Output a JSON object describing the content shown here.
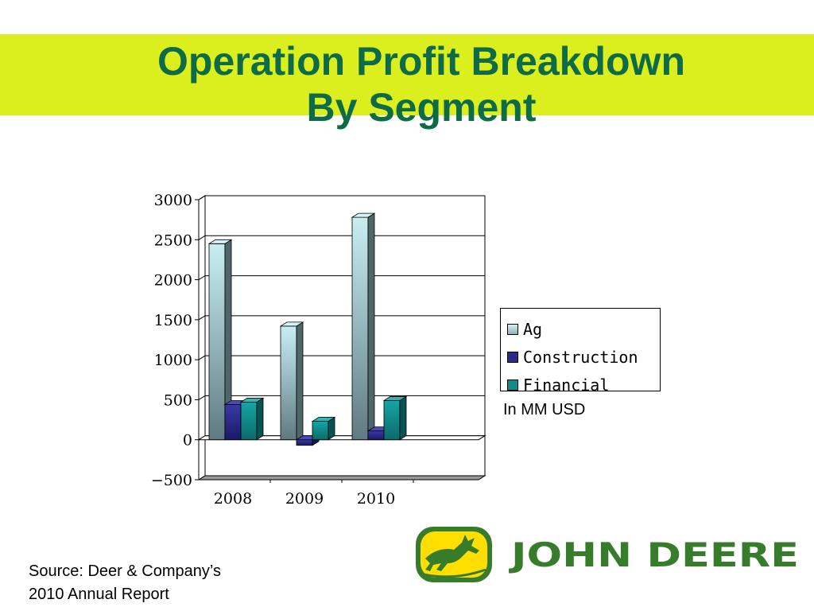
{
  "slide": {
    "title_line1": "Operation Profit Breakdown",
    "title_line2": "By Segment",
    "unit_note": "In MM USD",
    "source_line1": "Source: Deer & Company’s",
    "source_line2": "2010 Annual Report"
  },
  "logo": {
    "text": "JOHN DEERE",
    "colors": {
      "green": "#367c2b",
      "yellow": "#ffde00"
    }
  },
  "chart_data": {
    "type": "bar",
    "title": "",
    "xlabel": "",
    "ylabel": "",
    "categories": [
      "2008",
      "2009",
      "2010",
      ""
    ],
    "ylim": [
      -500,
      3000
    ],
    "yticks": [
      -500,
      0,
      500,
      1000,
      1500,
      2000,
      2500,
      3000
    ],
    "grid": true,
    "legend_position": "right",
    "series": [
      {
        "name": "Ag",
        "values": [
          2450,
          1420,
          2780,
          null
        ],
        "color": "#b3dde3"
      },
      {
        "name": "Construction",
        "values": [
          440,
          -70,
          110,
          null
        ],
        "color": "#2b2b8c"
      },
      {
        "name": "Financial",
        "values": [
          470,
          230,
          490,
          null
        ],
        "color": "#108a8a"
      }
    ]
  }
}
